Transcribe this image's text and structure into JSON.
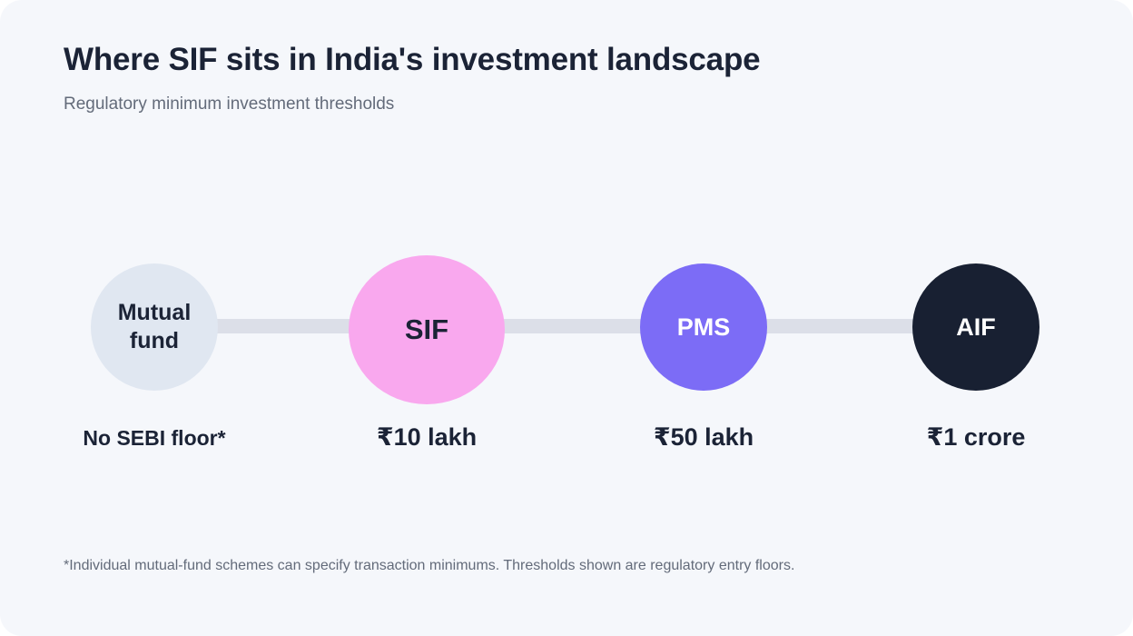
{
  "header": {
    "title": "Where SIF sits in India's investment landscape",
    "subtitle": "Regulatory minimum investment thresholds"
  },
  "colors": {
    "background": "#f5f7fb",
    "track": "#dcdfe8",
    "text_dark": "#1b2336",
    "text_muted": "#636b7a"
  },
  "nodes": [
    {
      "label": "Mutual\nfund",
      "threshold": "No SEBI floor*",
      "fill": "#e0e7f1",
      "text_color": "#1b2336"
    },
    {
      "label": "SIF",
      "threshold": "₹10 lakh",
      "fill": "#f9a8ee",
      "text_color": "#1b2336"
    },
    {
      "label": "PMS",
      "threshold": "₹50 lakh",
      "fill": "#7c6cf6",
      "text_color": "#ffffff"
    },
    {
      "label": "AIF",
      "threshold": "₹1 crore",
      "fill": "#182032",
      "text_color": "#ffffff"
    }
  ],
  "footnote": "*Individual mutual-fund schemes can specify transaction minimums. Thresholds shown are regulatory entry floors."
}
